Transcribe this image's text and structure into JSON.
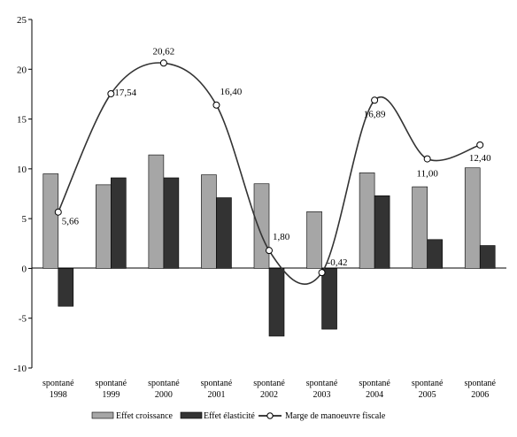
{
  "chart_data": {
    "type": "bar",
    "categories": [
      [
        "spontané",
        "1998"
      ],
      [
        "spontané",
        "1999"
      ],
      [
        "spontané",
        "2000"
      ],
      [
        "spontané",
        "2001"
      ],
      [
        "spontané",
        "2002"
      ],
      [
        "spontané",
        "2003"
      ],
      [
        "spontané",
        "2004"
      ],
      [
        "spontané",
        "2005"
      ],
      [
        "spontané",
        "2006"
      ]
    ],
    "series": [
      {
        "name": "Effet croissance",
        "kind": "bar",
        "color": "#a6a6a6",
        "values": [
          9.5,
          8.4,
          11.4,
          9.4,
          8.5,
          5.7,
          9.6,
          8.2,
          10.1
        ]
      },
      {
        "name": "Effet élasticité",
        "kind": "bar",
        "color": "#333333",
        "values": [
          -3.8,
          9.1,
          9.1,
          7.1,
          -6.8,
          -6.1,
          7.3,
          2.9,
          2.3
        ]
      },
      {
        "name": "Marge de manoeuvre fiscale",
        "kind": "line",
        "color": "#333333",
        "values": [
          5.66,
          17.54,
          20.62,
          16.4,
          1.8,
          -0.42,
          16.89,
          11.0,
          12.4
        ],
        "labels": [
          "5,66",
          "17,54",
          "20,62",
          "16,40",
          "1,80",
          "-0,42",
          "16,89",
          "11,00",
          "12,40"
        ]
      }
    ],
    "ylim": [
      -10,
      25
    ],
    "yticks": [
      -10,
      -5,
      0,
      5,
      10,
      15,
      20,
      25
    ],
    "title": "",
    "xlabel": "",
    "ylabel": "",
    "grid": false,
    "legend_position": "bottom"
  }
}
